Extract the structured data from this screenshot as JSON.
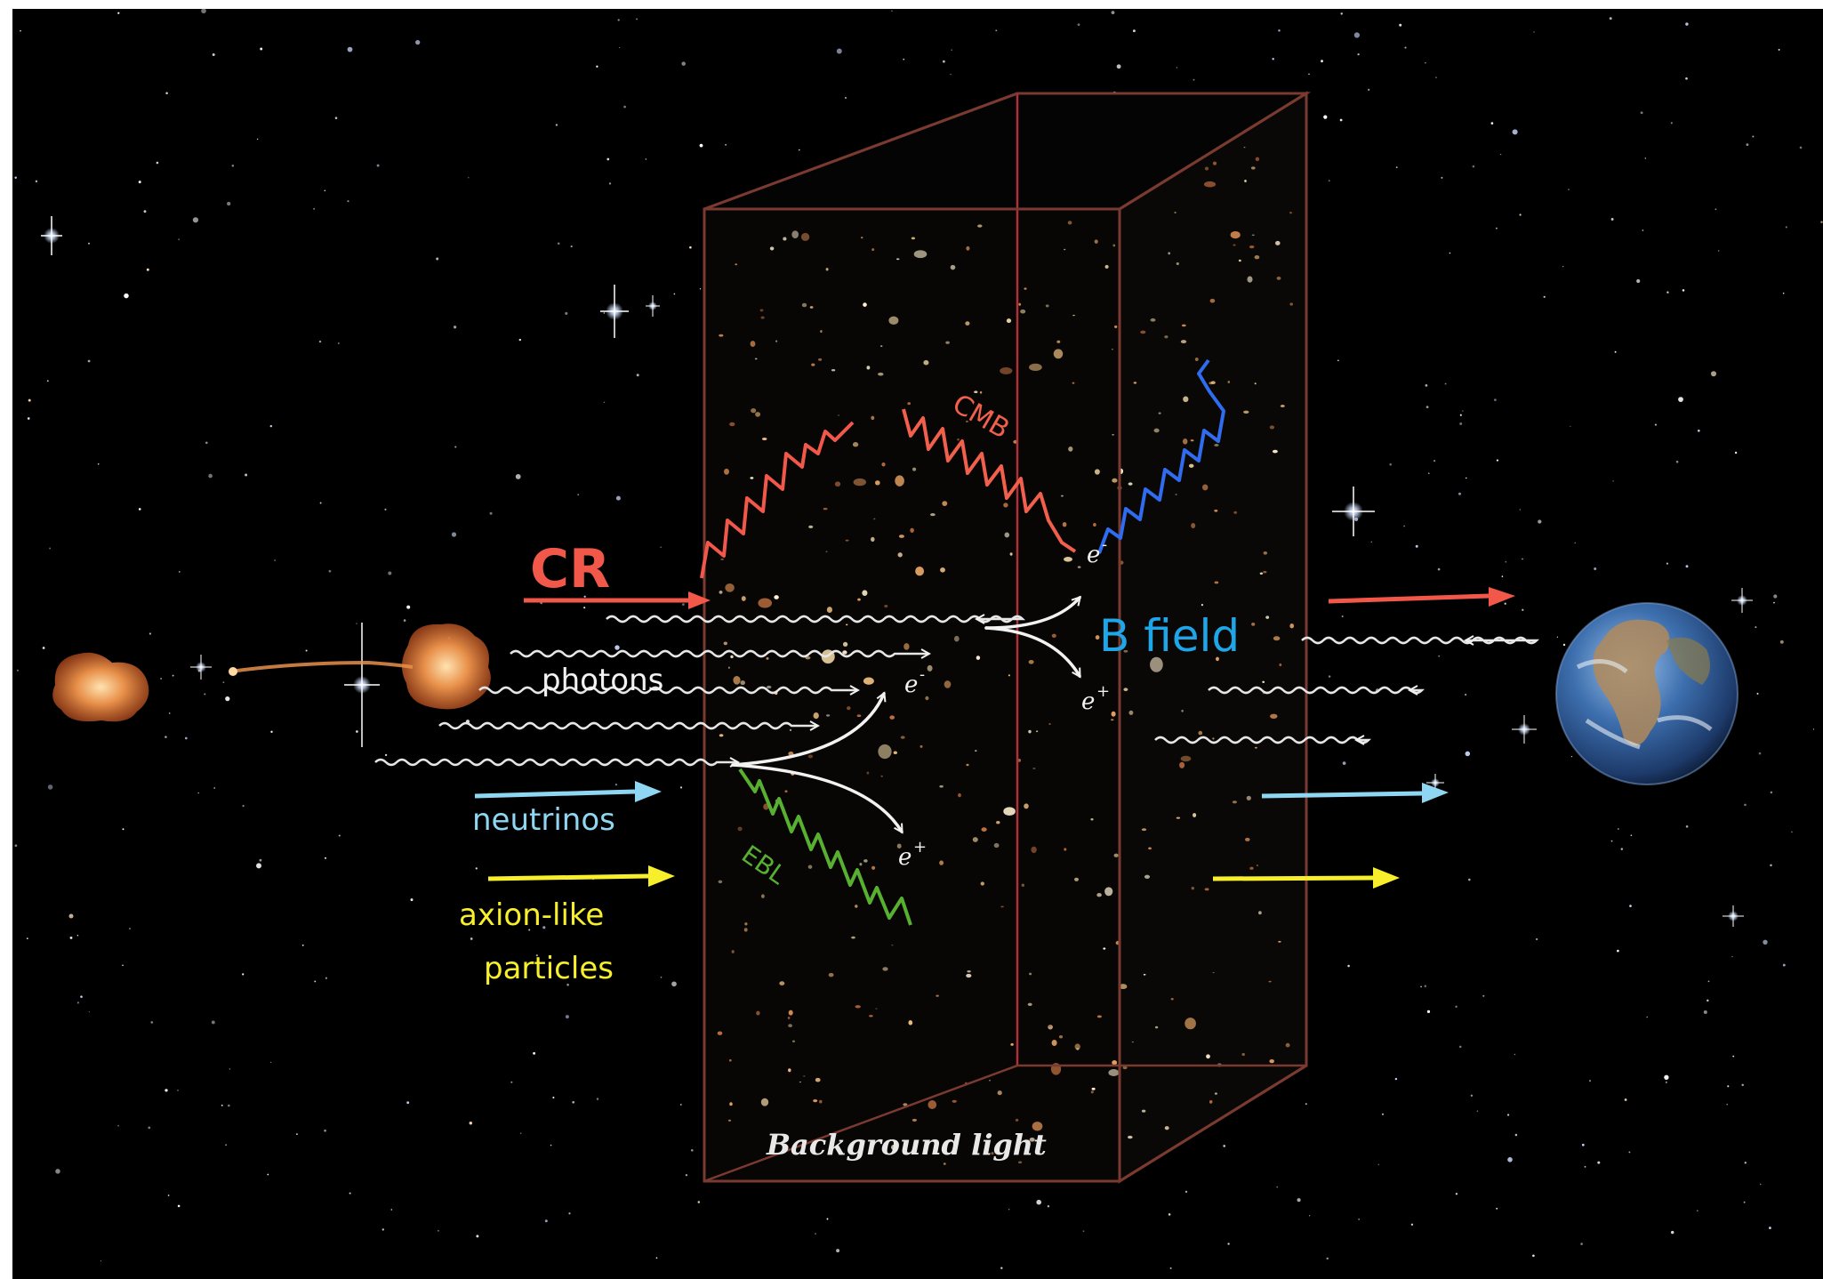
{
  "labels": {
    "cr": "CR",
    "cmb": "CMB",
    "photons": "photons",
    "b_field": "B field",
    "neutrinos": "neutrinos",
    "axion_line1": "axion-like",
    "axion_line2": "particles",
    "ebl": "EBL",
    "background_light": "Background light",
    "e_minus": "e",
    "e_plus": "e",
    "minus_sign": "-",
    "plus_sign": "+"
  },
  "colors": {
    "cosmic_ray": "#f2584a",
    "cmb": "#f0604c",
    "b_field": "#1ea6e8",
    "scattered_photon": "#2f6cf0",
    "neutrino": "#8fd6f2",
    "axion": "#f7ef2c",
    "ebl": "#58b030",
    "photon": "#e6e6e6",
    "box_edge": "#7a3a30",
    "background": "#000000"
  },
  "icons": {
    "source": "radio-galaxy-icon",
    "observer": "earth-icon"
  }
}
